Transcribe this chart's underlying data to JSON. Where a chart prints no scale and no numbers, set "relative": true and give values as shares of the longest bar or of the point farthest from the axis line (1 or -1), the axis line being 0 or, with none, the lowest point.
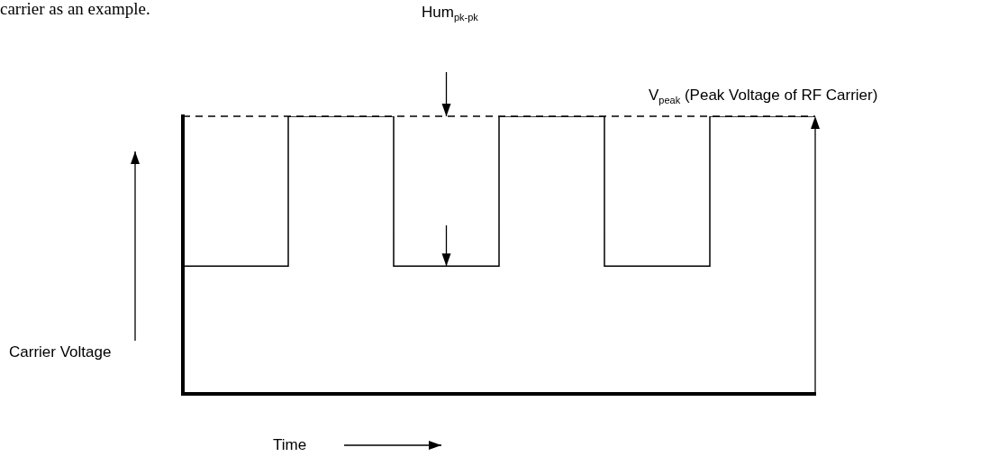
{
  "chart_data": {
    "type": "step",
    "relative": true,
    "xlabel": "Time",
    "ylabel": "Carrier Voltage",
    "tick_labels": false,
    "grid": false,
    "legend": false,
    "categories": [
      null,
      null,
      null,
      null,
      null,
      null,
      null
    ],
    "series": [
      {
        "color": "#000000",
        "values": [
          0.46,
          1,
          0.46,
          1,
          0.46,
          1,
          1
        ]
      }
    ],
    "ref_lines": [
      {
        "axis": "y",
        "value": 1,
        "label": "V$_{peak}$ (Peak Voltage of RF Carrier)",
        "color": "#000000",
        "line_style": "dashed"
      }
    ],
    "annotations": [
      "carrier as an example.",
      "Hum$_{pk-pk}$"
    ]
  }
}
